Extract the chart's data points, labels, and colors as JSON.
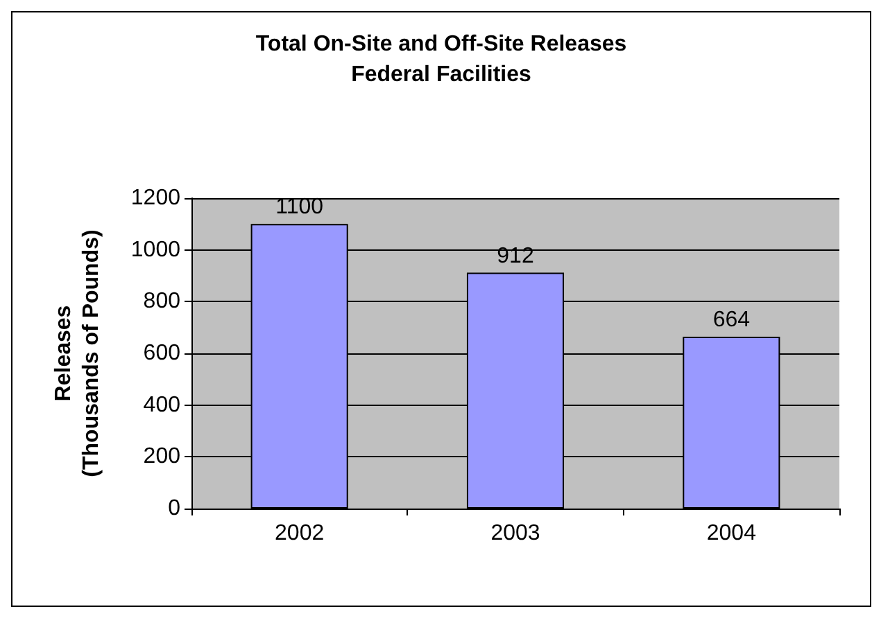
{
  "chart_data": {
    "type": "bar",
    "title": "Total On-Site and Off-Site Releases",
    "subtitle": "Federal Facilities",
    "ylabel": "Releases\n(Thousands of Pounds)",
    "categories": [
      "2002",
      "2003",
      "2004"
    ],
    "values": [
      1100,
      912,
      664
    ],
    "color": "#9999ff",
    "ylim": [
      0,
      1200
    ],
    "yticks": [
      0,
      200,
      400,
      600,
      800,
      1000,
      1200
    ],
    "grid": "y",
    "data_labels": true
  }
}
